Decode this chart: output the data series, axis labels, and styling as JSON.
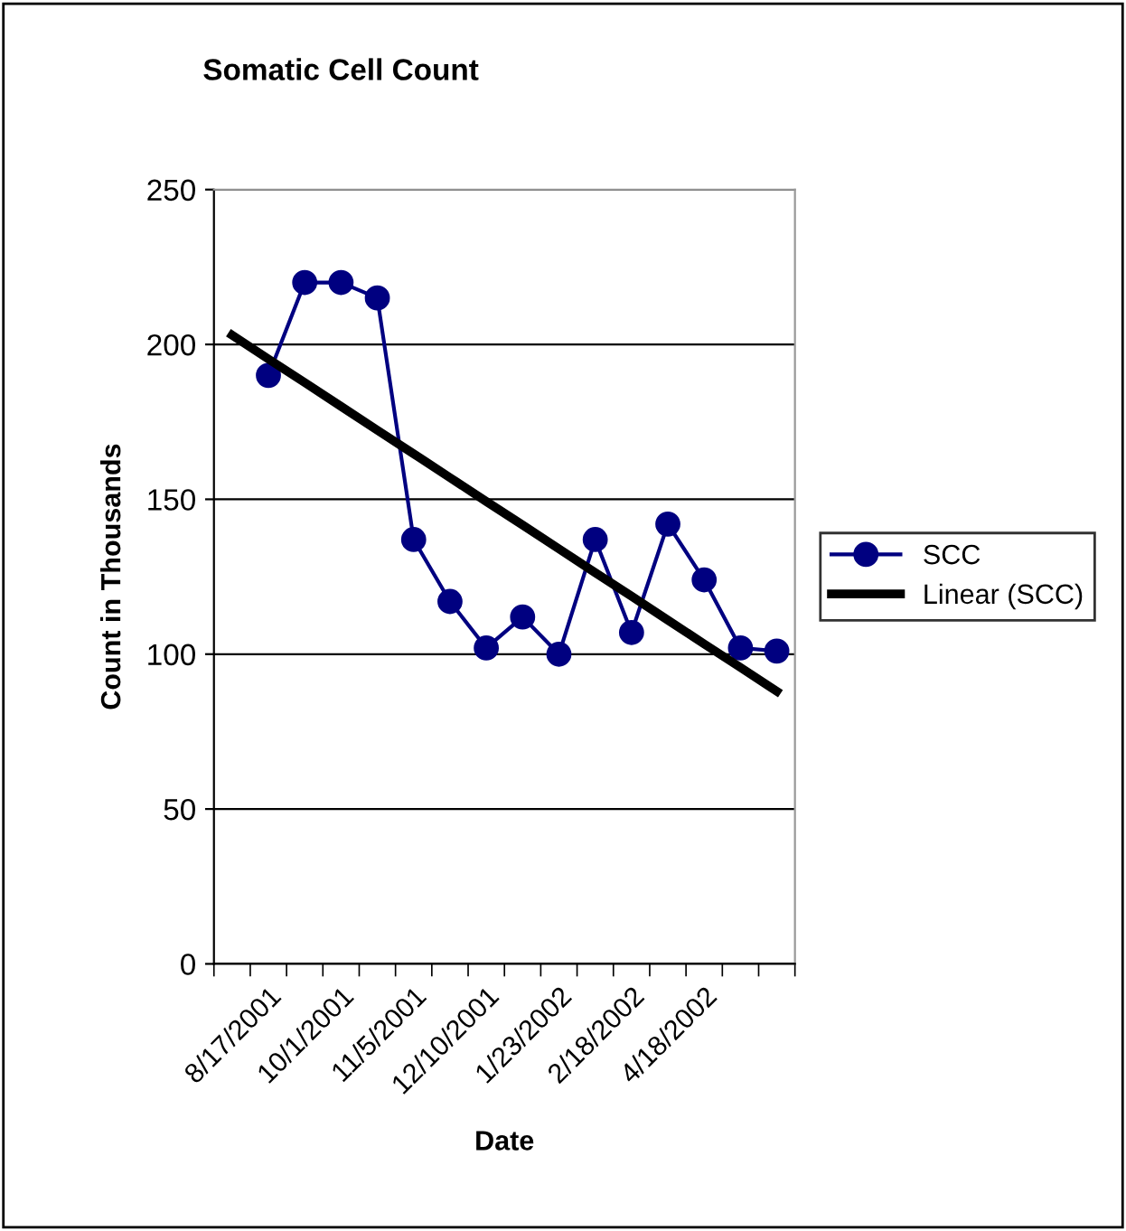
{
  "chart_data": {
    "type": "line",
    "title": "Somatic Cell Count",
    "xlabel": "Date",
    "ylabel": "Count in Thousands",
    "categories": [
      null,
      "8/17/2001",
      null,
      "10/1/2001",
      null,
      "11/5/2001",
      null,
      "12/10/2001",
      null,
      "1/23/2002",
      null,
      "2/18/2002",
      null,
      "4/18/2002",
      null,
      null
    ],
    "series": [
      {
        "name": "SCC",
        "color": "#000080",
        "marker": "circle",
        "values": [
          null,
          190,
          220,
          220,
          215,
          137,
          117,
          102,
          112,
          100,
          137,
          107,
          142,
          124,
          102,
          101
        ]
      },
      {
        "name": "Linear (SCC)",
        "color": "#000000",
        "marker": "none",
        "values": [
          203,
          195.3,
          187.7,
          180,
          172.3,
          164.7,
          157,
          149.3,
          141.7,
          134,
          126.3,
          118.7,
          111,
          103.3,
          95.7,
          88
        ]
      }
    ],
    "ylim": [
      0,
      250
    ],
    "yticks": [
      0,
      50,
      100,
      150,
      200,
      250
    ],
    "grid": "y",
    "legend": "right"
  }
}
